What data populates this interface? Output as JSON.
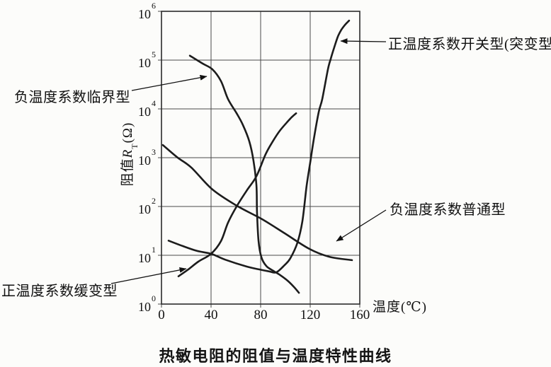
{
  "figure": {
    "caption": "热敏电阻的阻值与温度特性曲线"
  },
  "axes": {
    "y_label": {
      "prefix": "阻值",
      "symbol": "R",
      "subscript": "T",
      "suffix": "(Ω)"
    },
    "x_label": "温度(℃)",
    "x_ticks": [
      "0",
      "40",
      "80",
      "120",
      "160"
    ],
    "y_ticks": [
      {
        "base": "10",
        "exp": "6"
      },
      {
        "base": "10",
        "exp": "5"
      },
      {
        "base": "10",
        "exp": "4"
      },
      {
        "base": "10",
        "exp": "3"
      },
      {
        "base": "10",
        "exp": "2"
      },
      {
        "base": "10",
        "exp": "1"
      },
      {
        "base": "10",
        "exp": "0"
      }
    ]
  },
  "annotations": [
    {
      "id": "ntc-critical",
      "text": "负温度系数临界型"
    },
    {
      "id": "ptc-switch",
      "text": "正温度系数开关型(突变型)"
    },
    {
      "id": "ntc-ordinary",
      "text": "负温度系数普通型"
    },
    {
      "id": "ptc-slow",
      "text": "正温度系数缓变型"
    }
  ],
  "chart_data": {
    "type": "line",
    "title": "热敏电阻的阻值与温度特性曲线",
    "xlabel": "温度(℃)",
    "ylabel": "阻值R_T(Ω)",
    "x_range": [
      0,
      160
    ],
    "y_scale": "log10",
    "y_range_exponents": [
      0,
      6
    ],
    "grid": true,
    "legend": "arrow-annotations",
    "line_color": "#1c1c1c",
    "series": [
      {
        "name": "负温度系数临界型",
        "points_T_log10R": [
          [
            22.9,
            5.09
          ],
          [
            33.1,
            4.93
          ],
          [
            41.1,
            4.81
          ],
          [
            48.0,
            4.57
          ],
          [
            53.7,
            4.2
          ],
          [
            60.6,
            3.91
          ],
          [
            65.7,
            3.67
          ],
          [
            70.9,
            3.33
          ],
          [
            74.3,
            2.93
          ],
          [
            76.6,
            2.43
          ],
          [
            77.1,
            1.88
          ],
          [
            78.3,
            1.3
          ],
          [
            80.6,
            0.96
          ],
          [
            84.6,
            0.78
          ],
          [
            90.3,
            0.68
          ],
          [
            96.0,
            0.59
          ],
          [
            101.7,
            0.48
          ],
          [
            106.9,
            0.35
          ],
          [
            110.9,
            0.23
          ]
        ]
      },
      {
        "name": "负温度系数普通型",
        "points_T_log10R": [
          [
            1.1,
            3.26
          ],
          [
            12.6,
            3.01
          ],
          [
            24.0,
            2.8
          ],
          [
            41.1,
            2.35
          ],
          [
            61.1,
            2.01
          ],
          [
            81.1,
            1.74
          ],
          [
            99.4,
            1.45
          ],
          [
            119.4,
            1.13
          ],
          [
            135.4,
            0.97
          ],
          [
            153.7,
            0.9
          ]
        ]
      },
      {
        "name": "正温度系数缓变型",
        "points_T_log10R": [
          [
            13.7,
            0.57
          ],
          [
            21.1,
            0.7
          ],
          [
            29.7,
            0.87
          ],
          [
            40.0,
            1.03
          ],
          [
            48.0,
            1.29
          ],
          [
            53.7,
            1.67
          ],
          [
            60.6,
            2.0
          ],
          [
            68.6,
            2.32
          ],
          [
            76.6,
            2.62
          ],
          [
            84.0,
            3.07
          ],
          [
            89.7,
            3.33
          ],
          [
            95.4,
            3.55
          ],
          [
            101.1,
            3.72
          ],
          [
            105.1,
            3.83
          ],
          [
            108.6,
            3.91
          ]
        ]
      },
      {
        "name": "正温度系数开关型(突变型)",
        "points_T_log10R": [
          [
            5.7,
            1.3
          ],
          [
            17.1,
            1.19
          ],
          [
            28.6,
            1.09
          ],
          [
            40.0,
            1.03
          ],
          [
            51.4,
            0.91
          ],
          [
            68.6,
            0.77
          ],
          [
            78.9,
            0.71
          ],
          [
            86.9,
            0.67
          ],
          [
            92.6,
            0.65
          ],
          [
            99.4,
            0.8
          ],
          [
            104.0,
            0.94
          ],
          [
            109.7,
            1.26
          ],
          [
            113.7,
            1.7
          ],
          [
            117.1,
            2.42
          ],
          [
            120.0,
            2.9
          ],
          [
            122.9,
            3.38
          ],
          [
            126.9,
            3.94
          ],
          [
            129.7,
            4.2
          ],
          [
            134.3,
            4.81
          ],
          [
            136.6,
            5.03
          ],
          [
            139.4,
            5.26
          ],
          [
            142.3,
            5.48
          ],
          [
            145.1,
            5.62
          ],
          [
            148.0,
            5.72
          ],
          [
            151.4,
            5.81
          ]
        ]
      }
    ]
  }
}
